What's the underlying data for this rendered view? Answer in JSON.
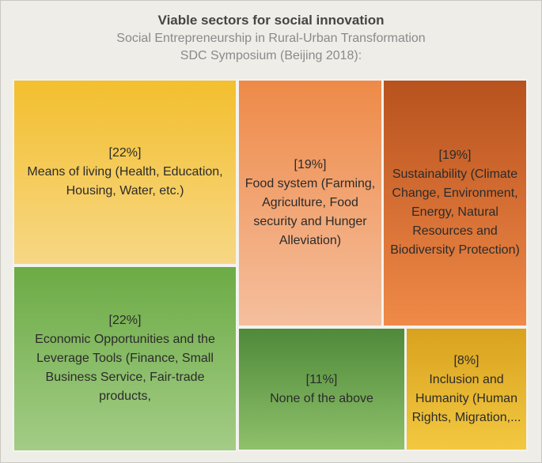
{
  "chart_data": {
    "type": "treemap",
    "title": "Viable sectors for social innovation",
    "subtitle_lines": [
      "Social Entrepreneurship in Rural-Urban Transformation",
      "SDC Symposium (Beijing 2018):"
    ],
    "items": [
      {
        "pct_label": "[22%]",
        "label": "Means of living (Health, Education, Housing, Water, etc.)",
        "value": 22,
        "color_top": "#f3bf2e",
        "color_bottom": "#f7d785"
      },
      {
        "pct_label": "[22%]",
        "label": "Economic Opportunities and the Leverage Tools (Finance, Small Business Service, Fair-trade products,",
        "value": 22,
        "color_top": "#6cab45",
        "color_bottom": "#a3cc86"
      },
      {
        "pct_label": "[19%]",
        "label": "Food system (Farming, Agriculture, Food security and Hunger Alleviation)",
        "value": 19,
        "color_top": "#ee8a48",
        "color_bottom": "#f5bf9e"
      },
      {
        "pct_label": "[19%]",
        "label": "Sustainability (Climate Change, Environment, Energy, Natural Resources and Biodiversity Protection)",
        "value": 19,
        "color_top": "#b8521e",
        "color_bottom": "#f08a48"
      },
      {
        "pct_label": "[11%]",
        "label": "None of the above",
        "value": 11,
        "color_top": "#4e8a3a",
        "color_bottom": "#8fc06a"
      },
      {
        "pct_label": "[8%]",
        "label": "Inclusion and Humanity (Human Rights, Migration,...",
        "value": 8,
        "color_top": "#d9a21e",
        "color_bottom": "#f3c840"
      }
    ]
  }
}
